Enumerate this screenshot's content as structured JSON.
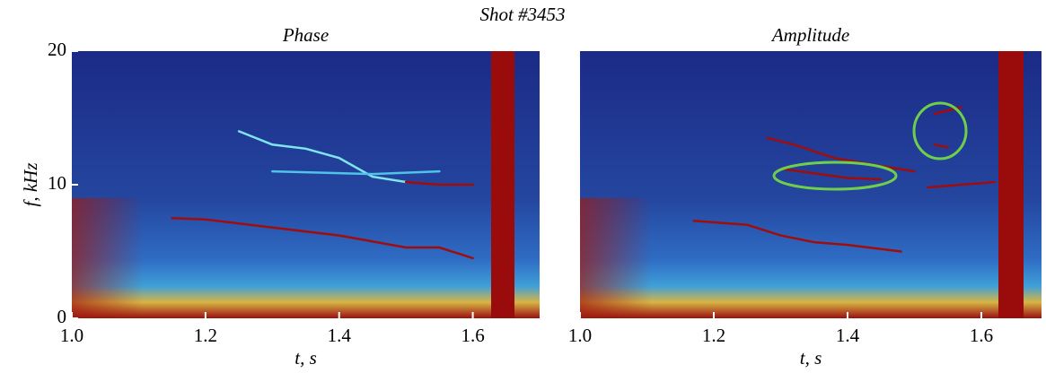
{
  "title": "Shot #3453",
  "chart_data": [
    {
      "type": "spectrogram",
      "title": "Phase",
      "ylabel": "f, kHz",
      "xlabel": "t, s",
      "xlim": [
        1.0,
        1.7
      ],
      "ylim": [
        0,
        20
      ],
      "xticks": [
        {
          "value": 1.0,
          "label": "1.0"
        },
        1.2,
        1.4,
        1.6
      ],
      "yticks": [
        0,
        10,
        20
      ],
      "series": [
        {
          "color": "#a00d0d",
          "x": [
            1.15,
            1.2,
            1.3,
            1.4,
            1.5,
            1.55,
            1.6
          ],
          "values": [
            7.5,
            7.4,
            6.8,
            6.2,
            5.3,
            5.3,
            4.5
          ]
        },
        {
          "color": "#7fe6f0",
          "x": [
            1.25,
            1.3,
            1.35,
            1.4,
            1.45,
            1.5
          ],
          "values": [
            14,
            13,
            12.7,
            12,
            10.6,
            10.2
          ]
        },
        {
          "color": "#a00d0d",
          "x": [
            1.5,
            1.55,
            1.6
          ],
          "values": [
            10.2,
            10,
            10
          ]
        },
        {
          "color": "#4fc3e8",
          "x": [
            1.3,
            1.45,
            1.55
          ],
          "values": [
            11,
            10.8,
            11
          ]
        }
      ]
    },
    {
      "type": "spectrogram",
      "title": "Amplitude",
      "xlabel": "t, s",
      "xlim": [
        1.0,
        1.69
      ],
      "ylim": [
        0,
        20
      ],
      "xticks": [
        {
          "value": 1.0,
          "label": "1.0"
        },
        1.2,
        1.4,
        1.6
      ],
      "series": [
        {
          "color": "#a00d0d",
          "x": [
            1.17,
            1.25,
            1.3,
            1.35,
            1.4,
            1.48
          ],
          "values": [
            7.3,
            7,
            6.2,
            5.7,
            5.5,
            5
          ]
        },
        {
          "color": "#a00d0d",
          "x": [
            1.28,
            1.32,
            1.38,
            1.45,
            1.5
          ],
          "values": [
            13.5,
            13,
            12,
            11.4,
            11
          ]
        },
        {
          "color": "#a00d0d",
          "x": [
            1.3,
            1.4,
            1.45
          ],
          "values": [
            11.2,
            10.5,
            10.4
          ]
        },
        {
          "color": "#a00d0d",
          "x": [
            1.52,
            1.62
          ],
          "values": [
            9.8,
            10.2
          ]
        },
        {
          "color": "#a00d0d",
          "x": [
            1.53,
            1.57
          ],
          "values": [
            15.3,
            15.8
          ]
        },
        {
          "color": "#a00d0d",
          "x": [
            1.53,
            1.55
          ],
          "values": [
            13,
            12.8
          ]
        }
      ]
    }
  ]
}
